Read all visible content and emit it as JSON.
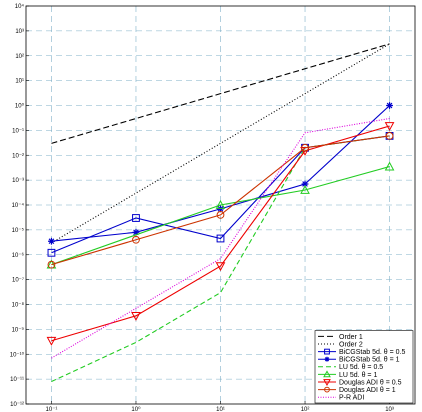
{
  "chart_data": {
    "type": "line",
    "x_scale": "log",
    "y_scale": "log",
    "xlim": [
      0.05,
      2000
    ],
    "ylim": [
      1e-12,
      10000.0
    ],
    "x_ticks": [
      0.1,
      1,
      10,
      100,
      1000
    ],
    "x_tick_labels": [
      "10⁻¹",
      "10⁰",
      "10¹",
      "10²",
      "10³"
    ],
    "y_ticks": [
      1e-12,
      1e-11,
      1e-10,
      1e-09,
      1e-08,
      1e-07,
      1e-06,
      1e-05,
      0.0001,
      0.001,
      0.01,
      0.1,
      1,
      10.0,
      100.0,
      1000.0,
      10000.0
    ],
    "y_tick_labels": [
      "10⁻¹²",
      "10⁻¹¹",
      "10⁻¹⁰",
      "10⁻⁹",
      "10⁻⁸",
      "10⁻⁷",
      "10⁻⁶",
      "10⁻⁵",
      "10⁻⁴",
      "10⁻³",
      "10⁻²",
      "10⁻¹",
      "10⁰",
      "10¹",
      "10²",
      "10³",
      "10⁴"
    ],
    "grid": true,
    "legend_position": "bottom-right",
    "series": [
      {
        "name": "Order 1",
        "color": "#000000",
        "dash": "6,3",
        "marker": "none",
        "x": [
          0.1,
          1000
        ],
        "y": [
          0.03,
          300
        ]
      },
      {
        "name": "Order 2",
        "color": "#000000",
        "dash": "1,2",
        "marker": "none",
        "x": [
          0.1,
          1000
        ],
        "y": [
          3e-06,
          300
        ]
      },
      {
        "name": "BiCGStab 5d.  θ = 0.5",
        "color": "#0000cc",
        "dash": "",
        "marker": "square",
        "x": [
          0.1,
          1,
          10,
          100,
          1000
        ],
        "y": [
          1.2e-06,
          3e-05,
          4.5e-06,
          0.02,
          0.06
        ]
      },
      {
        "name": "BiCGStab 5d.  θ = 1",
        "color": "#0000cc",
        "dash": "",
        "marker": "star",
        "x": [
          0.1,
          1,
          10,
          100,
          1000
        ],
        "y": [
          3.5e-06,
          8e-06,
          7e-05,
          0.0007,
          1.0
        ]
      },
      {
        "name": "LU 5d. θ = 0.5",
        "color": "#22cc22",
        "dash": "5,3",
        "marker": "none",
        "x": [
          0.1,
          1,
          10,
          100,
          1000
        ],
        "y": [
          8e-12,
          3e-10,
          3e-08,
          0.02,
          0.06
        ]
      },
      {
        "name": "LU 5d. θ = 1",
        "color": "#22cc22",
        "dash": "",
        "marker": "triangle",
        "x": [
          0.1,
          10,
          100,
          1000
        ],
        "y": [
          4e-07,
          0.0001,
          0.0004,
          0.0035
        ]
      },
      {
        "name": "Douglas ADI θ = 0.5",
        "color": "#ee0000",
        "dash": "",
        "marker": "triangle-down",
        "x": [
          0.1,
          1,
          10,
          100,
          1000
        ],
        "y": [
          3.5e-10,
          3.5e-09,
          3.5e-07,
          0.015,
          0.15
        ]
      },
      {
        "name": "Douglas ADI θ = 1",
        "color": "#cc3300",
        "dash": "",
        "marker": "circle",
        "x": [
          0.1,
          1,
          10,
          100,
          1000
        ],
        "y": [
          4e-07,
          4e-06,
          4e-05,
          0.02,
          0.06
        ]
      },
      {
        "name": "P-R ADI",
        "color": "#dd00dd",
        "dash": "1,1.5",
        "marker": "none",
        "x": [
          0.1,
          1,
          10,
          100,
          1000
        ],
        "y": [
          7e-11,
          7e-09,
          7e-07,
          0.08,
          0.3
        ]
      }
    ]
  }
}
